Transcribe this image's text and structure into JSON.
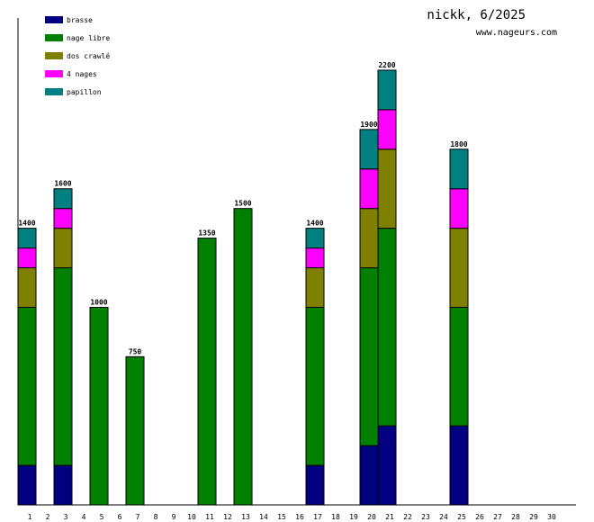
{
  "header": {
    "title": "nickk, 6/2025",
    "site": "www.nageurs.com"
  },
  "chart_data": {
    "type": "bar",
    "stacked": true,
    "categories": [
      "1",
      "2",
      "3",
      "4",
      "5",
      "6",
      "7",
      "8",
      "9",
      "10",
      "11",
      "12",
      "13",
      "14",
      "15",
      "16",
      "17",
      "18",
      "19",
      "20",
      "21",
      "22",
      "23",
      "24",
      "25",
      "26",
      "27",
      "28",
      "29",
      "30"
    ],
    "ylim": [
      0,
      2200
    ],
    "legend_position": "top-left",
    "grid": false,
    "series": [
      {
        "name": "brasse",
        "color": "#000080",
        "values": [
          200,
          0,
          200,
          0,
          0,
          0,
          0,
          0,
          0,
          0,
          0,
          0,
          0,
          0,
          0,
          0,
          200,
          0,
          0,
          300,
          400,
          0,
          0,
          0,
          400,
          0,
          0,
          0,
          0,
          0
        ]
      },
      {
        "name": "nage libre",
        "color": "#008000",
        "values": [
          800,
          0,
          1000,
          0,
          1000,
          0,
          750,
          0,
          0,
          0,
          1350,
          0,
          1500,
          0,
          0,
          0,
          800,
          0,
          0,
          900,
          1000,
          0,
          0,
          0,
          600,
          0,
          0,
          0,
          0,
          0
        ]
      },
      {
        "name": "dos crawlé",
        "color": "#808000",
        "values": [
          200,
          0,
          200,
          0,
          0,
          0,
          0,
          0,
          0,
          0,
          0,
          0,
          0,
          0,
          0,
          0,
          200,
          0,
          0,
          300,
          400,
          0,
          0,
          0,
          400,
          0,
          0,
          0,
          0,
          0
        ]
      },
      {
        "name": "4 nages",
        "color": "#ff00ff",
        "values": [
          100,
          0,
          100,
          0,
          0,
          0,
          0,
          0,
          0,
          0,
          0,
          0,
          0,
          0,
          0,
          0,
          100,
          0,
          0,
          200,
          200,
          0,
          0,
          0,
          200,
          0,
          0,
          0,
          0,
          0
        ]
      },
      {
        "name": "papillon",
        "color": "#008080",
        "values": [
          100,
          0,
          100,
          0,
          0,
          0,
          0,
          0,
          0,
          0,
          0,
          0,
          0,
          0,
          0,
          0,
          100,
          0,
          0,
          200,
          200,
          0,
          0,
          0,
          200,
          0,
          0,
          0,
          0,
          0
        ]
      }
    ],
    "totals": [
      1400,
      0,
      1600,
      0,
      1000,
      0,
      750,
      0,
      0,
      0,
      1350,
      0,
      1500,
      0,
      0,
      0,
      1400,
      0,
      0,
      1900,
      2200,
      0,
      0,
      0,
      1800,
      0,
      0,
      0,
      0,
      0
    ]
  }
}
